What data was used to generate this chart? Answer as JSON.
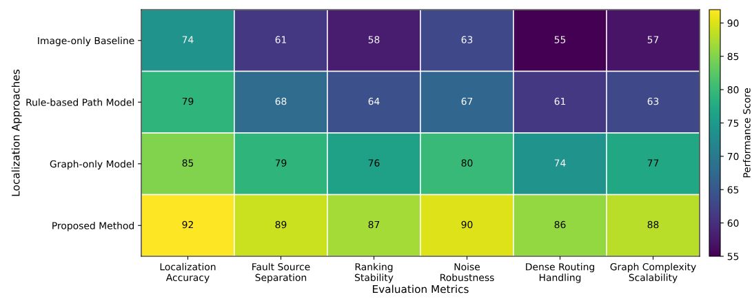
{
  "chart_data": {
    "type": "heatmap",
    "xlabel": "Evaluation Metrics",
    "ylabel": "Localization Approaches",
    "clabel": "Performance Score",
    "categories": [
      "Localization\nAccuracy",
      "Fault Source\nSeparation",
      "Ranking\nStability",
      "Noise\nRobustness",
      "Dense Routing\nHandling",
      "Graph Complexity\nScalability"
    ],
    "y_categories": [
      "Image-only Baseline",
      "Rule-based Path Model",
      "Graph-only Model",
      "Proposed Method"
    ],
    "cells": [
      [
        74,
        61,
        58,
        63,
        55,
        57
      ],
      [
        79,
        68,
        64,
        67,
        61,
        63
      ],
      [
        85,
        79,
        76,
        80,
        74,
        77
      ],
      [
        92,
        89,
        87,
        90,
        86,
        88
      ]
    ],
    "clim": [
      55,
      92
    ],
    "cticks": [
      55,
      60,
      65,
      70,
      75,
      80,
      85,
      90
    ],
    "data_labels": true
  }
}
